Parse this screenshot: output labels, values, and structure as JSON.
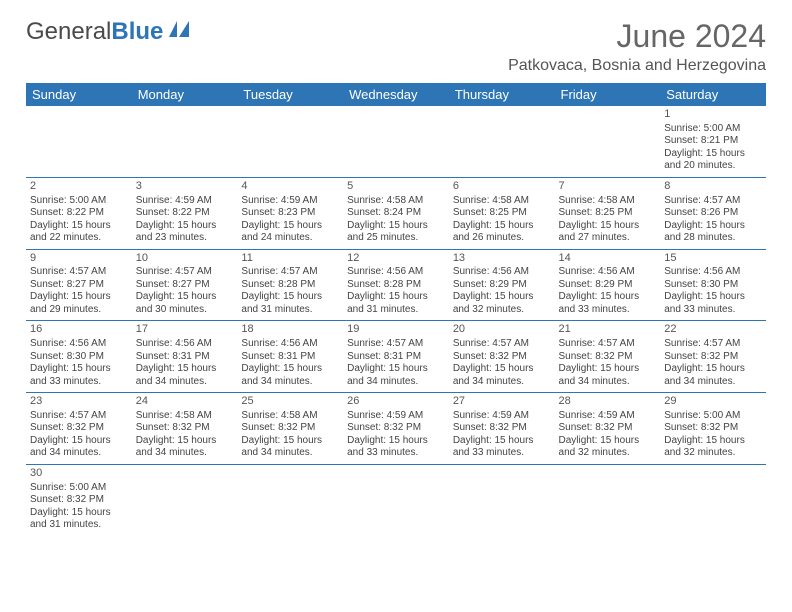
{
  "logo": {
    "part1": "General",
    "part2": "Blue"
  },
  "title": "June 2024",
  "location": "Patkovaca, Bosnia and Herzegovina",
  "colors": {
    "header_bg": "#2e75b6",
    "header_fg": "#ffffff",
    "rule": "#2e75b6",
    "text": "#444444"
  },
  "weekdays": [
    "Sunday",
    "Monday",
    "Tuesday",
    "Wednesday",
    "Thursday",
    "Friday",
    "Saturday"
  ],
  "first_weekday_index": 6,
  "days": [
    {
      "n": 1,
      "sunrise": "5:00 AM",
      "sunset": "8:21 PM",
      "daylight": "15 hours and 20 minutes."
    },
    {
      "n": 2,
      "sunrise": "5:00 AM",
      "sunset": "8:22 PM",
      "daylight": "15 hours and 22 minutes."
    },
    {
      "n": 3,
      "sunrise": "4:59 AM",
      "sunset": "8:22 PM",
      "daylight": "15 hours and 23 minutes."
    },
    {
      "n": 4,
      "sunrise": "4:59 AM",
      "sunset": "8:23 PM",
      "daylight": "15 hours and 24 minutes."
    },
    {
      "n": 5,
      "sunrise": "4:58 AM",
      "sunset": "8:24 PM",
      "daylight": "15 hours and 25 minutes."
    },
    {
      "n": 6,
      "sunrise": "4:58 AM",
      "sunset": "8:25 PM",
      "daylight": "15 hours and 26 minutes."
    },
    {
      "n": 7,
      "sunrise": "4:58 AM",
      "sunset": "8:25 PM",
      "daylight": "15 hours and 27 minutes."
    },
    {
      "n": 8,
      "sunrise": "4:57 AM",
      "sunset": "8:26 PM",
      "daylight": "15 hours and 28 minutes."
    },
    {
      "n": 9,
      "sunrise": "4:57 AM",
      "sunset": "8:27 PM",
      "daylight": "15 hours and 29 minutes."
    },
    {
      "n": 10,
      "sunrise": "4:57 AM",
      "sunset": "8:27 PM",
      "daylight": "15 hours and 30 minutes."
    },
    {
      "n": 11,
      "sunrise": "4:57 AM",
      "sunset": "8:28 PM",
      "daylight": "15 hours and 31 minutes."
    },
    {
      "n": 12,
      "sunrise": "4:56 AM",
      "sunset": "8:28 PM",
      "daylight": "15 hours and 31 minutes."
    },
    {
      "n": 13,
      "sunrise": "4:56 AM",
      "sunset": "8:29 PM",
      "daylight": "15 hours and 32 minutes."
    },
    {
      "n": 14,
      "sunrise": "4:56 AM",
      "sunset": "8:29 PM",
      "daylight": "15 hours and 33 minutes."
    },
    {
      "n": 15,
      "sunrise": "4:56 AM",
      "sunset": "8:30 PM",
      "daylight": "15 hours and 33 minutes."
    },
    {
      "n": 16,
      "sunrise": "4:56 AM",
      "sunset": "8:30 PM",
      "daylight": "15 hours and 33 minutes."
    },
    {
      "n": 17,
      "sunrise": "4:56 AM",
      "sunset": "8:31 PM",
      "daylight": "15 hours and 34 minutes."
    },
    {
      "n": 18,
      "sunrise": "4:56 AM",
      "sunset": "8:31 PM",
      "daylight": "15 hours and 34 minutes."
    },
    {
      "n": 19,
      "sunrise": "4:57 AM",
      "sunset": "8:31 PM",
      "daylight": "15 hours and 34 minutes."
    },
    {
      "n": 20,
      "sunrise": "4:57 AM",
      "sunset": "8:32 PM",
      "daylight": "15 hours and 34 minutes."
    },
    {
      "n": 21,
      "sunrise": "4:57 AM",
      "sunset": "8:32 PM",
      "daylight": "15 hours and 34 minutes."
    },
    {
      "n": 22,
      "sunrise": "4:57 AM",
      "sunset": "8:32 PM",
      "daylight": "15 hours and 34 minutes."
    },
    {
      "n": 23,
      "sunrise": "4:57 AM",
      "sunset": "8:32 PM",
      "daylight": "15 hours and 34 minutes."
    },
    {
      "n": 24,
      "sunrise": "4:58 AM",
      "sunset": "8:32 PM",
      "daylight": "15 hours and 34 minutes."
    },
    {
      "n": 25,
      "sunrise": "4:58 AM",
      "sunset": "8:32 PM",
      "daylight": "15 hours and 34 minutes."
    },
    {
      "n": 26,
      "sunrise": "4:59 AM",
      "sunset": "8:32 PM",
      "daylight": "15 hours and 33 minutes."
    },
    {
      "n": 27,
      "sunrise": "4:59 AM",
      "sunset": "8:32 PM",
      "daylight": "15 hours and 33 minutes."
    },
    {
      "n": 28,
      "sunrise": "4:59 AM",
      "sunset": "8:32 PM",
      "daylight": "15 hours and 32 minutes."
    },
    {
      "n": 29,
      "sunrise": "5:00 AM",
      "sunset": "8:32 PM",
      "daylight": "15 hours and 32 minutes."
    },
    {
      "n": 30,
      "sunrise": "5:00 AM",
      "sunset": "8:32 PM",
      "daylight": "15 hours and 31 minutes."
    }
  ],
  "labels": {
    "sunrise": "Sunrise:",
    "sunset": "Sunset:",
    "daylight": "Daylight:"
  }
}
